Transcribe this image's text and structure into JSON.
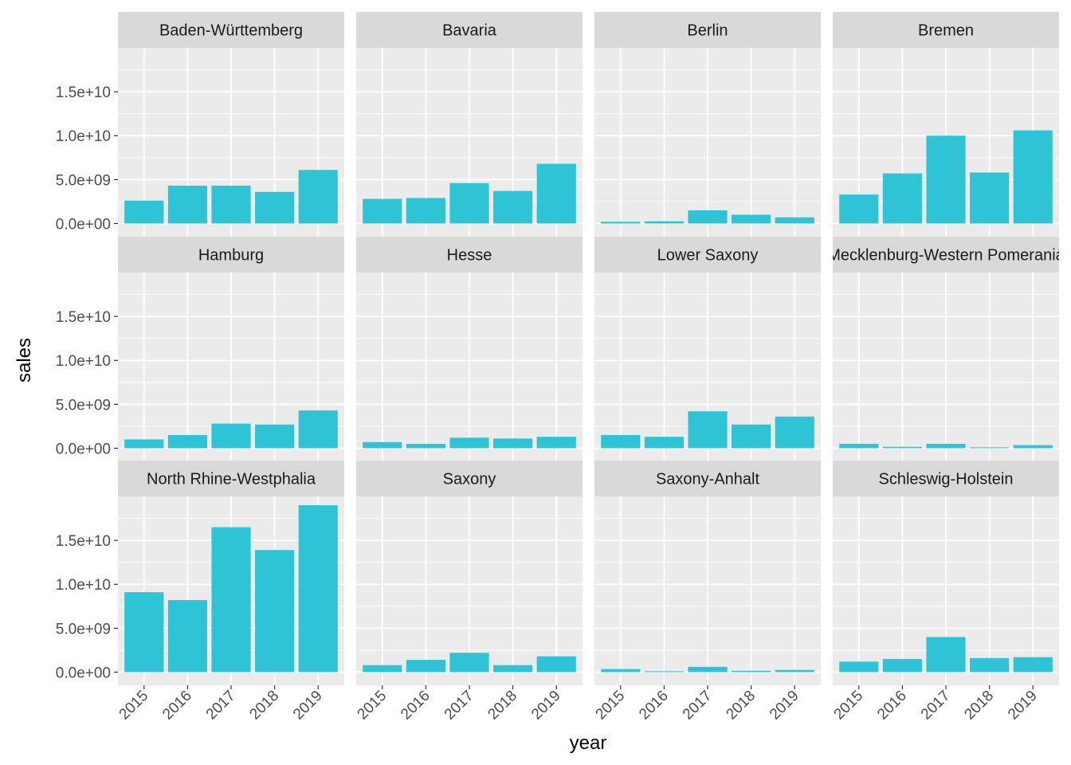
{
  "chart_data": {
    "type": "bar",
    "layout": "facet_wrap",
    "xlabel": "year",
    "ylabel": "sales",
    "categories": [
      "2015",
      "2016",
      "2017",
      "2018",
      "2019"
    ],
    "ylim": [
      -1500000000,
      20000000000
    ],
    "yticks": [
      0,
      5000000000,
      10000000000,
      15000000000
    ],
    "ytick_labels": [
      "0.0e+00",
      "5.0e+09",
      "1.0e+10",
      "1.5e+10"
    ],
    "bar_color": "#2EC4D6",
    "panel_background": "#EBEBEB",
    "strip_background": "#D9D9D9",
    "grid": true,
    "facets": [
      {
        "name": "Baden-Württemberg",
        "values": [
          2600000000,
          4300000000,
          4300000000,
          3600000000,
          6100000000
        ]
      },
      {
        "name": "Bavaria",
        "values": [
          2800000000,
          2900000000,
          4600000000,
          3700000000,
          6800000000
        ]
      },
      {
        "name": "Berlin",
        "values": [
          200000000,
          250000000,
          1500000000,
          1000000000,
          700000000
        ]
      },
      {
        "name": "Bremen",
        "values": [
          3300000000,
          5700000000,
          10000000000,
          5800000000,
          10600000000
        ]
      },
      {
        "name": "Hamburg",
        "values": [
          1000000000,
          1500000000,
          2800000000,
          2700000000,
          4300000000
        ]
      },
      {
        "name": "Hesse",
        "values": [
          700000000,
          500000000,
          1200000000,
          1100000000,
          1300000000
        ]
      },
      {
        "name": "Lower Saxony",
        "values": [
          1500000000,
          1300000000,
          4200000000,
          2700000000,
          3600000000
        ]
      },
      {
        "name": "Mecklenburg-Western Pomerania",
        "values": [
          500000000,
          150000000,
          500000000,
          100000000,
          350000000
        ]
      },
      {
        "name": "North Rhine-Westphalia",
        "values": [
          9100000000,
          8200000000,
          16500000000,
          13900000000,
          19000000000
        ]
      },
      {
        "name": "Saxony",
        "values": [
          800000000,
          1400000000,
          2200000000,
          800000000,
          1800000000
        ]
      },
      {
        "name": "Saxony-Anhalt",
        "values": [
          350000000,
          100000000,
          600000000,
          150000000,
          250000000
        ]
      },
      {
        "name": "Schleswig-Holstein",
        "values": [
          1200000000,
          1500000000,
          4000000000,
          1600000000,
          1700000000
        ]
      }
    ]
  }
}
